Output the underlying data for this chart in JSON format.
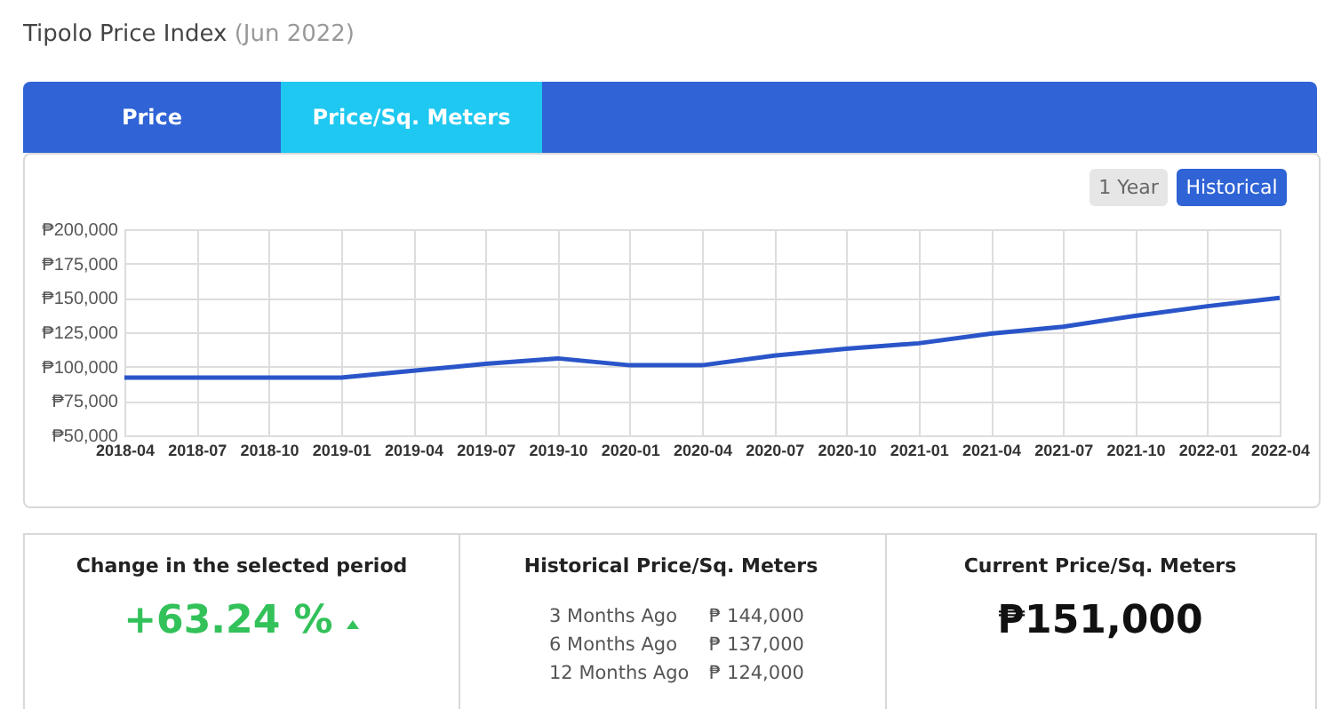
{
  "chart_data": [
    {
      "type": "other",
      "title": "Tipolo Price Index",
      "subtitle": "(Jun 2022)",
      "annotations": [
        "Price",
        "Price/Sq. Meters",
        "1 Year",
        "Historical"
      ]
    },
    {
      "type": "line",
      "categories": [
        "2018-04",
        "2018-07",
        "2018-10",
        "2019-01",
        "2019-04",
        "2019-07",
        "2019-10",
        "2020-01",
        "2020-04",
        "2020-07",
        "2020-10",
        "2021-01",
        "2021-04",
        "2021-07",
        "2021-10",
        "2022-01",
        "2022-04"
      ],
      "series": [
        {
          "color": "#2a55c9",
          "values": [
            92000,
            92000,
            92000,
            92000,
            97000,
            102000,
            106000,
            101000,
            101000,
            108000,
            113000,
            117000,
            124000,
            129000,
            137000,
            144000,
            150000
          ]
        }
      ],
      "ylim": [
        50000,
        200000
      ],
      "yticks": [
        {
          "value": 50000,
          "label": "₱50,000"
        },
        {
          "value": 75000,
          "label": "₱75,000"
        },
        {
          "value": 100000,
          "label": "₱100,000"
        },
        {
          "value": 125000,
          "label": "₱125,000"
        },
        {
          "value": 150000,
          "label": "₱150,000"
        },
        {
          "value": 175000,
          "label": "₱175,000"
        },
        {
          "value": 200000,
          "label": "₱200,000"
        }
      ],
      "grid": true
    },
    {
      "type": "other",
      "title": "Change in the selected period",
      "annotations": [
        "+63.24 %"
      ]
    },
    {
      "type": "other",
      "title": "Historical Price/Sq. Meters",
      "annotations": [
        "3 Months Ago",
        "₱ 144,000",
        "6 Months Ago",
        "₱ 137,000",
        "12 Months Ago",
        "₱ 124,000"
      ]
    },
    {
      "type": "other",
      "title": "Current Price/Sq. Meters",
      "annotations": [
        "₱151,000"
      ]
    }
  ]
}
